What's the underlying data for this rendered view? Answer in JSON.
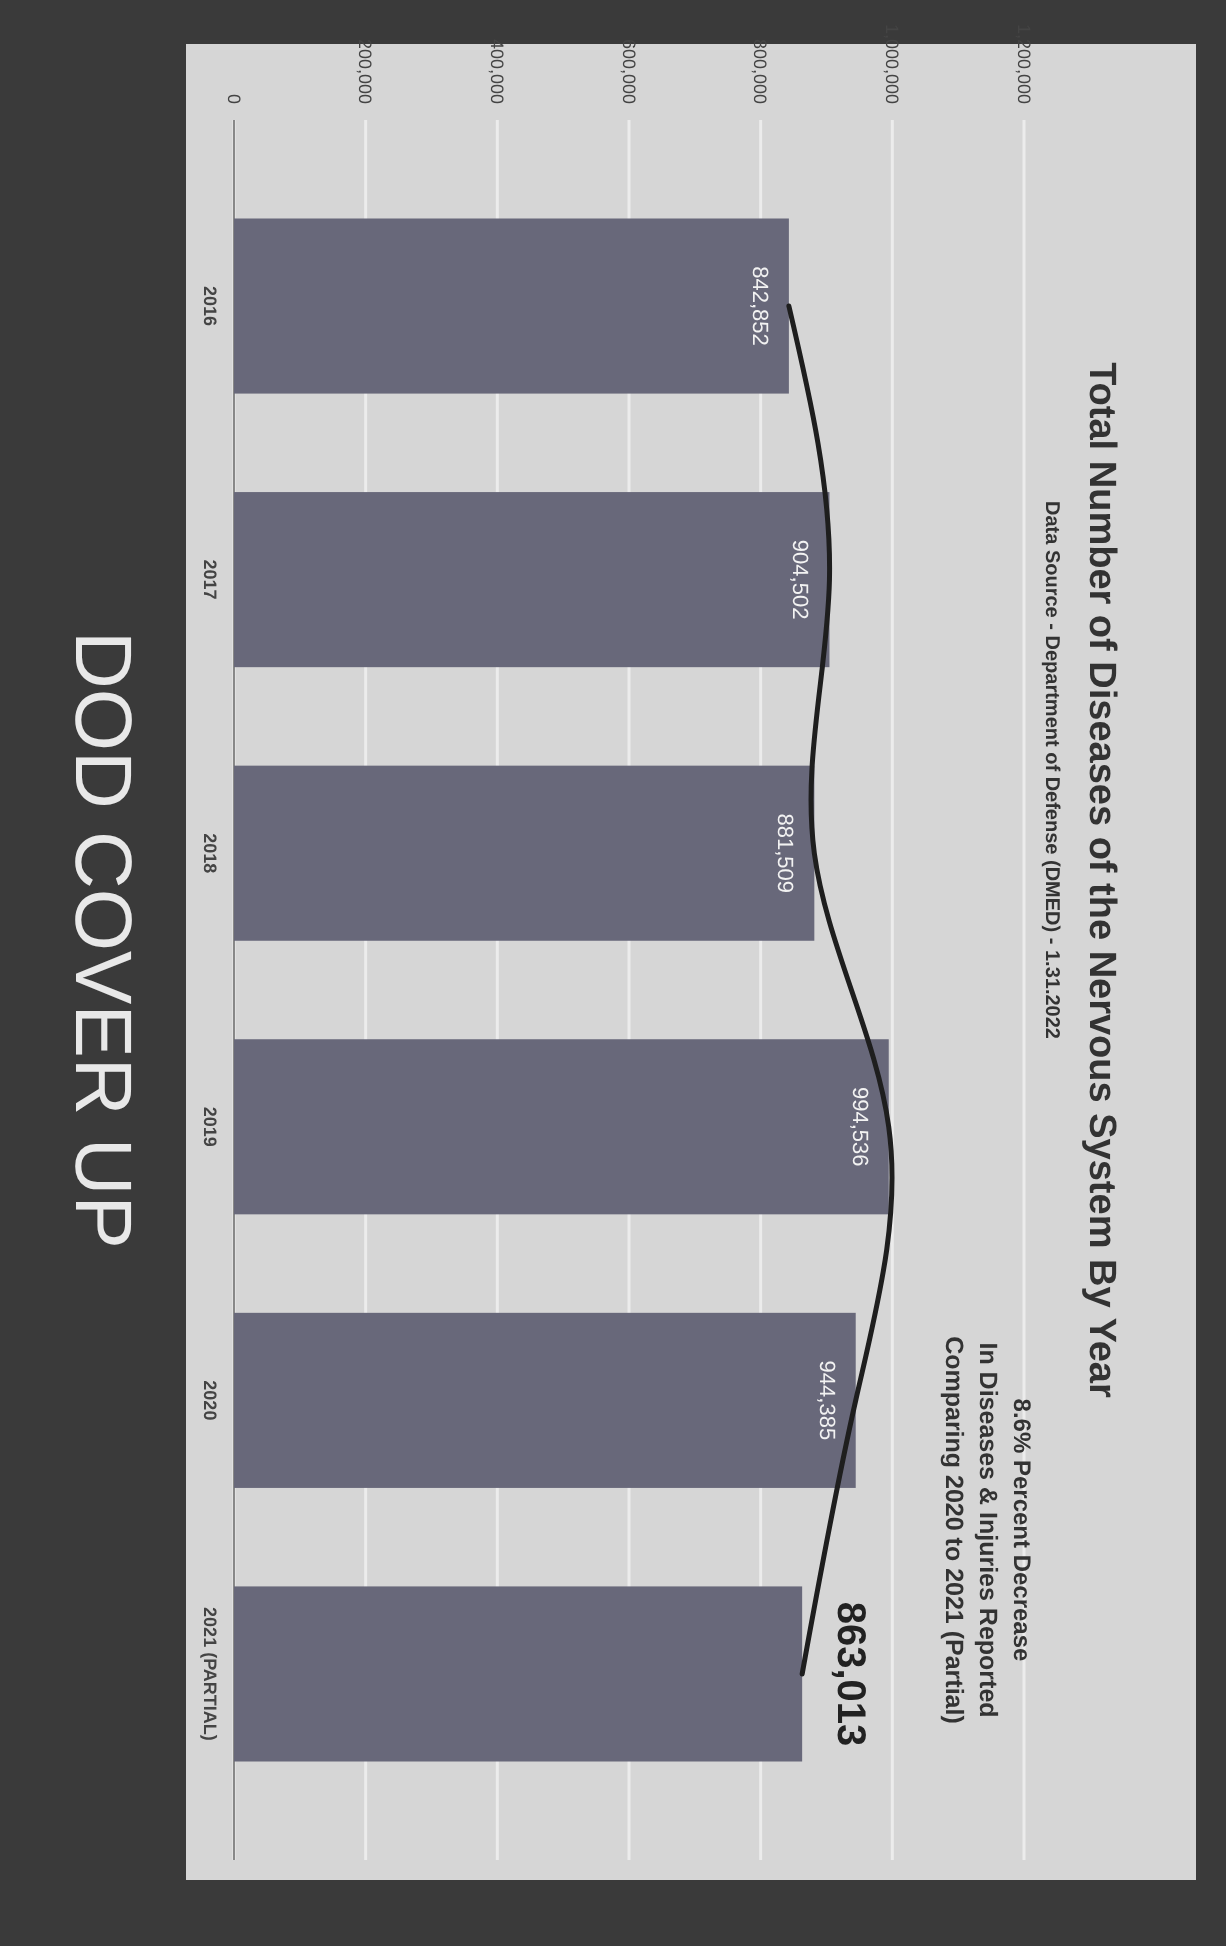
{
  "chart_data": {
    "type": "bar",
    "orientation": "horizontal",
    "title": "Total Number of Diseases of the Nervous System By Year",
    "subtitle": "Data Source - Department of Defense (DMED) - 1.31.2022",
    "categories": [
      "2016",
      "2017",
      "2018",
      "2019",
      "2020",
      "2021 (PARTIAL)"
    ],
    "series": [
      {
        "color": "#68687a",
        "values": [
          842852,
          904502,
          881509,
          994536,
          944385,
          863013
        ],
        "value_labels": [
          "842,852",
          "904,502",
          "881,509",
          "994,536",
          "944,385",
          "863,013"
        ]
      },
      {
        "type": "line",
        "color": "#1e1e1e",
        "values": [
          842852,
          904502,
          881509,
          994536,
          944385,
          863013
        ]
      }
    ],
    "xlim": [
      0,
      1200000
    ],
    "xticks": [
      {
        "value": 0,
        "label": "0"
      },
      {
        "value": 200000,
        "label": "200,000"
      },
      {
        "value": 400000,
        "label": "400,000"
      },
      {
        "value": 600000,
        "label": "600,000"
      },
      {
        "value": 800000,
        "label": "800,000"
      },
      {
        "value": 1000000,
        "label": "1,000,000"
      },
      {
        "value": 1200000,
        "label": "1,200,000"
      }
    ],
    "grid": "x",
    "marker": "none",
    "annotations": [
      "8.6% Percent Decrease",
      "In Diseases & Injuries Reported",
      "Comparing 2020 to 2021 (Partial)",
      "DOD COVER UP"
    ]
  }
}
